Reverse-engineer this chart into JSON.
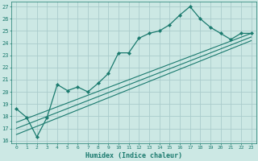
{
  "xlabel": "Humidex (Indice chaleur)",
  "bg_color": "#cce8e4",
  "grid_color": "#aacccc",
  "line_color": "#1a7a6e",
  "xlim": [
    -0.5,
    23.5
  ],
  "ylim": [
    15.8,
    27.4
  ],
  "xticks": [
    0,
    1,
    2,
    3,
    4,
    5,
    6,
    7,
    8,
    9,
    10,
    11,
    12,
    13,
    14,
    15,
    16,
    17,
    18,
    19,
    20,
    21,
    22,
    23
  ],
  "yticks": [
    16,
    17,
    18,
    19,
    20,
    21,
    22,
    23,
    24,
    25,
    26,
    27
  ],
  "series1_x": [
    0,
    1,
    2,
    3,
    4,
    5,
    6,
    7,
    8,
    9,
    10,
    11,
    12,
    13,
    14,
    15,
    16,
    17,
    18,
    19,
    20,
    21,
    22,
    23
  ],
  "series1_y": [
    18.6,
    17.9,
    16.3,
    17.9,
    20.6,
    20.1,
    20.4,
    20.0,
    20.7,
    21.5,
    23.2,
    23.2,
    24.4,
    24.8,
    25.0,
    25.5,
    26.3,
    27.0,
    26.0,
    25.3,
    24.8,
    24.3,
    24.8,
    24.8
  ],
  "series2_x": [
    0,
    23
  ],
  "series2_y": [
    17.5,
    24.8
  ],
  "series3_x": [
    0,
    23
  ],
  "series3_y": [
    17.0,
    24.5
  ],
  "series4_x": [
    0,
    23
  ],
  "series4_y": [
    16.5,
    24.2
  ]
}
